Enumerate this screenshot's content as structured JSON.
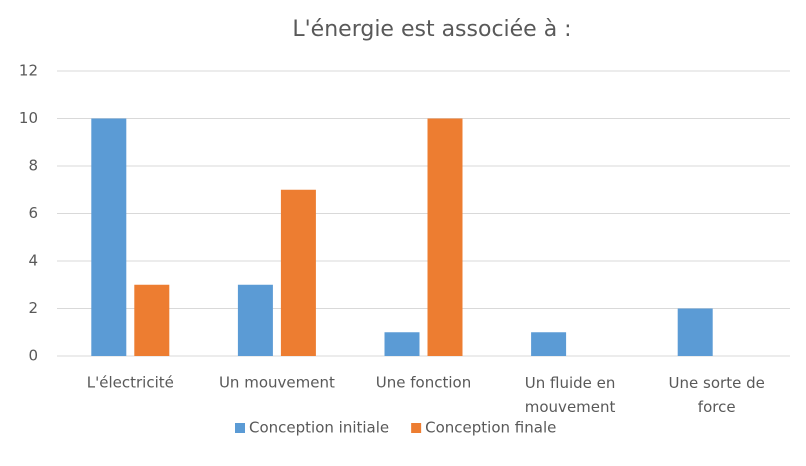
{
  "chart_data": {
    "type": "bar",
    "title": "L'énergie est associée à :",
    "categories": [
      "L'électricité",
      "Un mouvement",
      "Une fonction",
      "Un fluide en mouvement",
      "Une sorte de force"
    ],
    "series": [
      {
        "name": "Conception initiale",
        "color": "#5b9bd5",
        "values": [
          10,
          3,
          1,
          1,
          2
        ]
      },
      {
        "name": "Conception finale",
        "color": "#ed7d31",
        "values": [
          3,
          7,
          10,
          0,
          0
        ]
      }
    ],
    "ylim": [
      0,
      12
    ],
    "yticks": [
      0,
      2,
      4,
      6,
      8,
      10,
      12
    ],
    "grid": true,
    "legend": "bottom"
  }
}
